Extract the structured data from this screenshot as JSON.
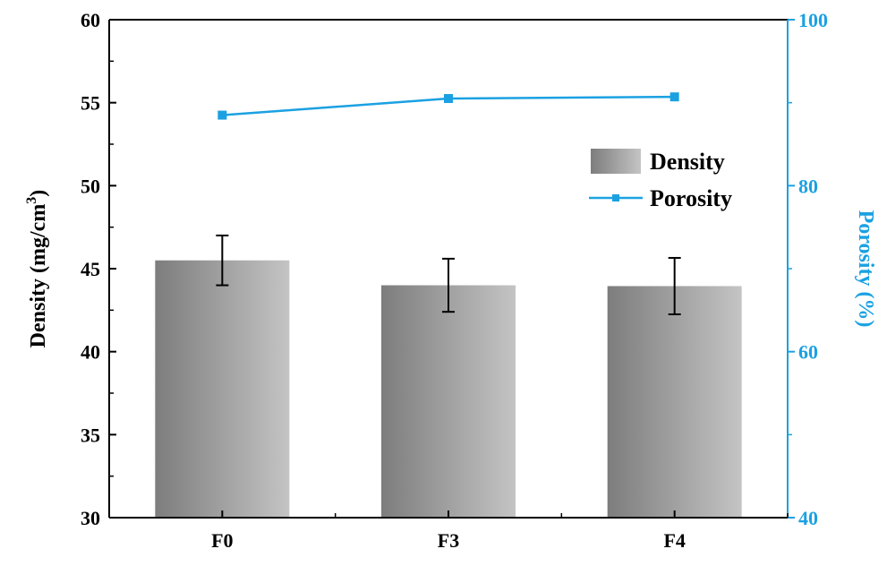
{
  "chart_data": {
    "type": "bar",
    "categories": [
      "F0",
      "F3",
      "F4"
    ],
    "series": [
      {
        "name": "Density",
        "type": "bar",
        "axis": "left",
        "values": [
          45.5,
          44.0,
          43.95
        ],
        "error": [
          1.5,
          1.6,
          1.7
        ]
      },
      {
        "name": "Porosity",
        "type": "line",
        "axis": "right",
        "values": [
          88.5,
          90.5,
          90.7
        ]
      }
    ],
    "ylabel": "Density (mg/cm",
    "ylabel_sup": "3",
    "ylabel_close": ")",
    "ylim": [
      30,
      60
    ],
    "yticks": [
      30,
      35,
      40,
      45,
      50,
      55,
      60
    ],
    "y2label": "Porosity (%)",
    "y2lim": [
      40,
      100
    ],
    "y2ticks": [
      40,
      60,
      80,
      100
    ],
    "legend": {
      "placement": "upper-right-inside",
      "entries": [
        "Density",
        "Porosity"
      ]
    },
    "grid": false,
    "colors": {
      "axis": "#000000",
      "bar_dark": "#7d7d7d",
      "bar_light": "#c4c4c4",
      "porosity": "#1ba1e2",
      "right_axis": "#1ba1e2"
    }
  }
}
